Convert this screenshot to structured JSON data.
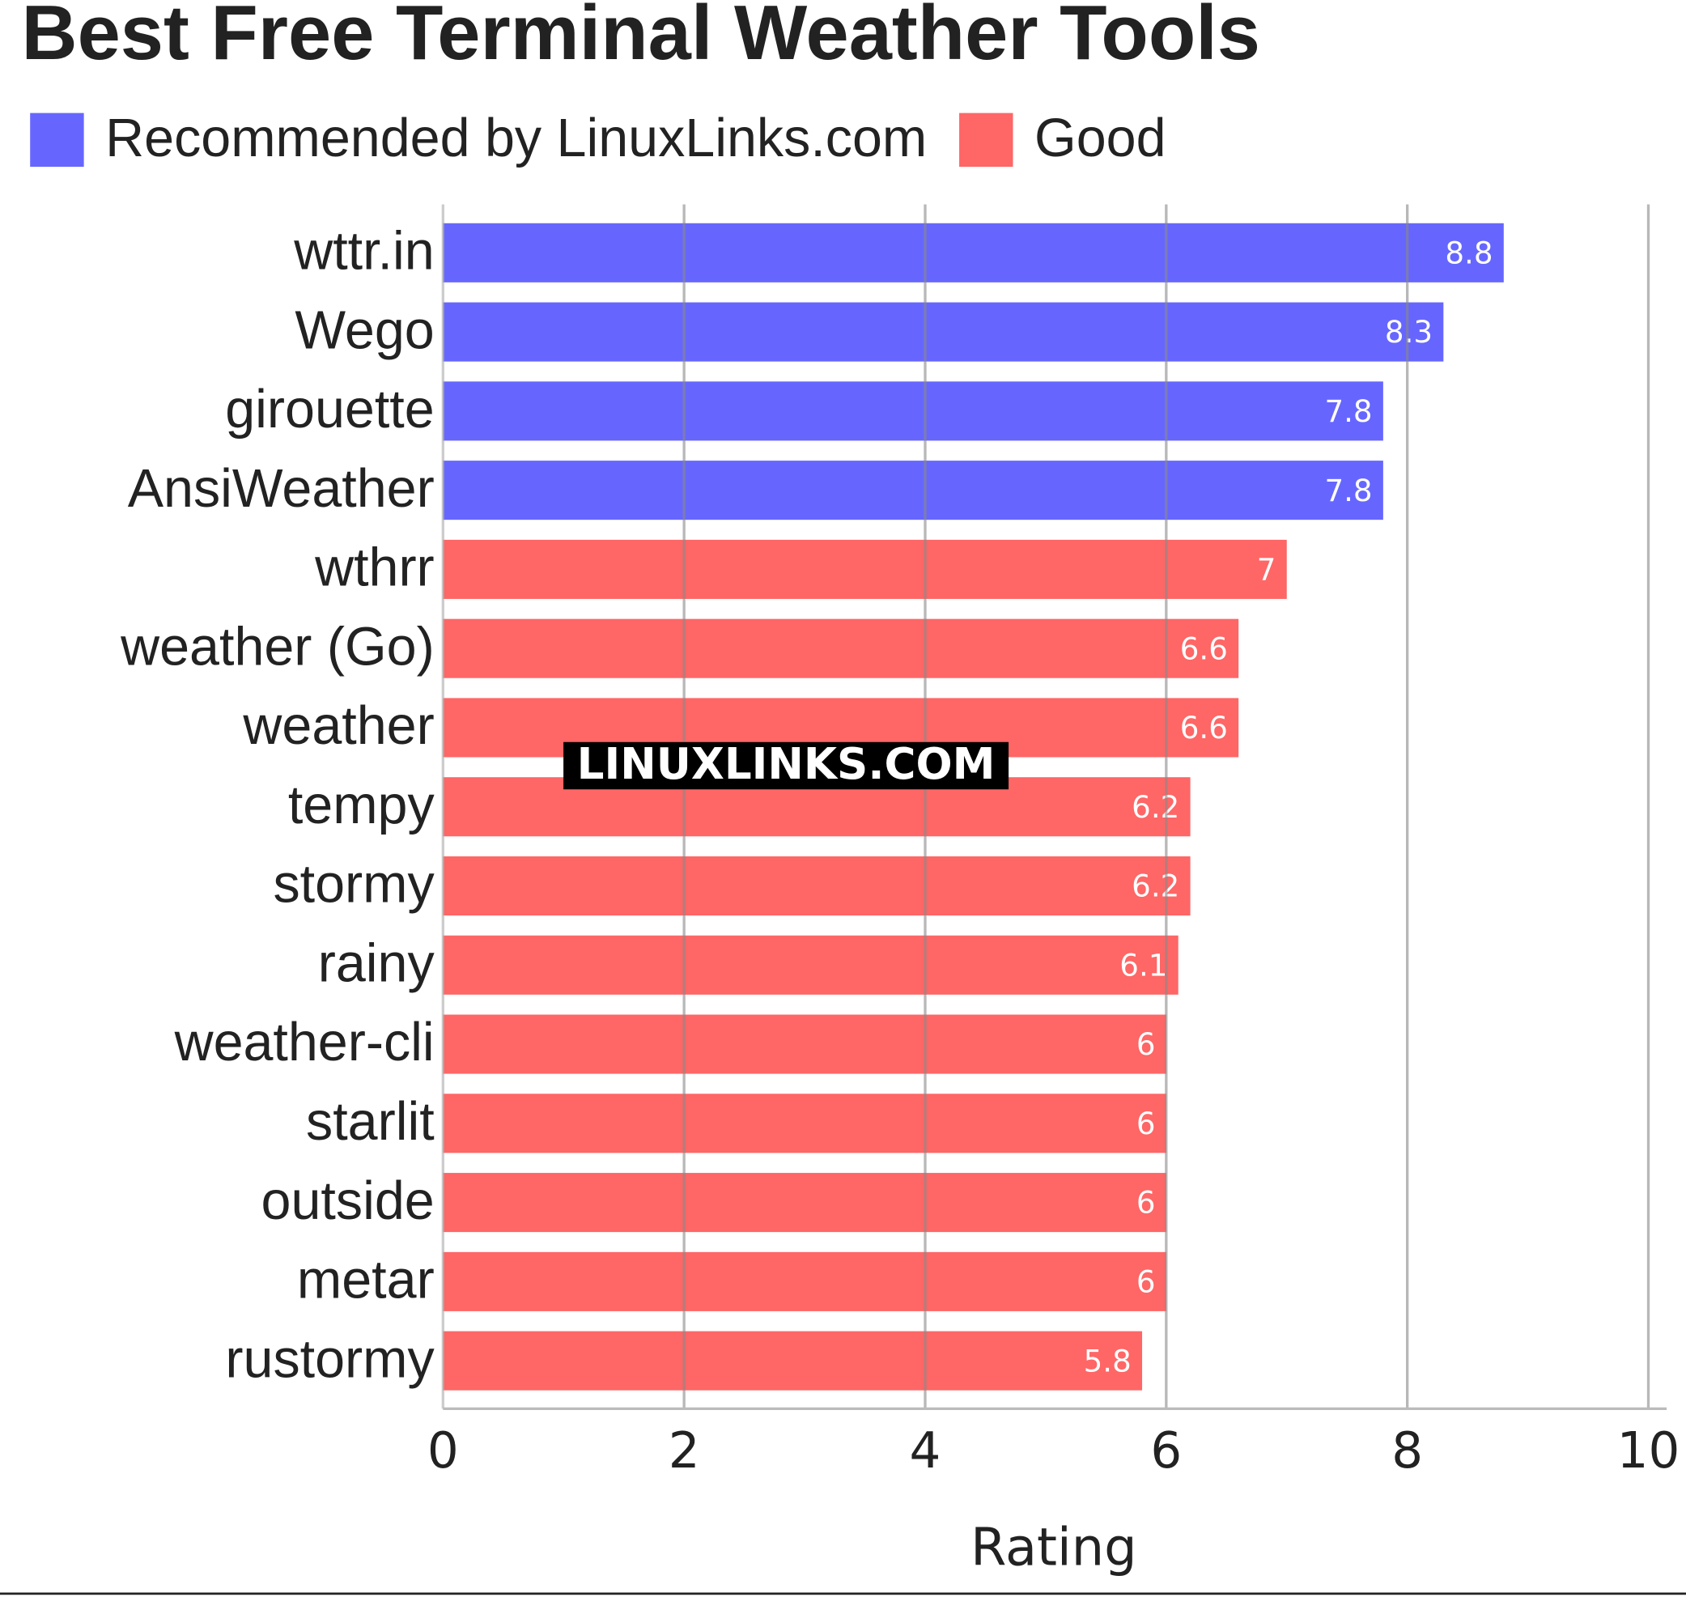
{
  "chart_data": {
    "type": "hbar",
    "title": "Best Free Terminal Weather Tools",
    "watermark": "LINUXLINKS.COM",
    "xlabel": "Rating",
    "categories": [
      "wttr.in",
      "Wego",
      "girouette",
      "AnsiWeather",
      "wthrr",
      "weather (Go)",
      "weather",
      "tempy",
      "stormy",
      "rainy",
      "weather-cli",
      "starlit",
      "outside",
      "metar",
      "rustormy"
    ],
    "series": [
      {
        "name": "Recommended by LinuxLinks.com",
        "color": "#6666ff",
        "values": [
          8.8,
          8.3,
          7.8,
          7.8,
          null,
          null,
          null,
          null,
          null,
          null,
          null,
          null,
          null,
          null,
          null
        ]
      },
      {
        "name": "Good",
        "color": "#ff6666",
        "values": [
          null,
          null,
          null,
          null,
          7,
          6.6,
          6.6,
          6.2,
          6.2,
          6.1,
          6,
          6,
          6,
          6,
          5.8
        ]
      }
    ],
    "xlim": [
      0,
      10
    ],
    "xticks": [
      0,
      2,
      4,
      6,
      8,
      10
    ],
    "grid": true
  }
}
